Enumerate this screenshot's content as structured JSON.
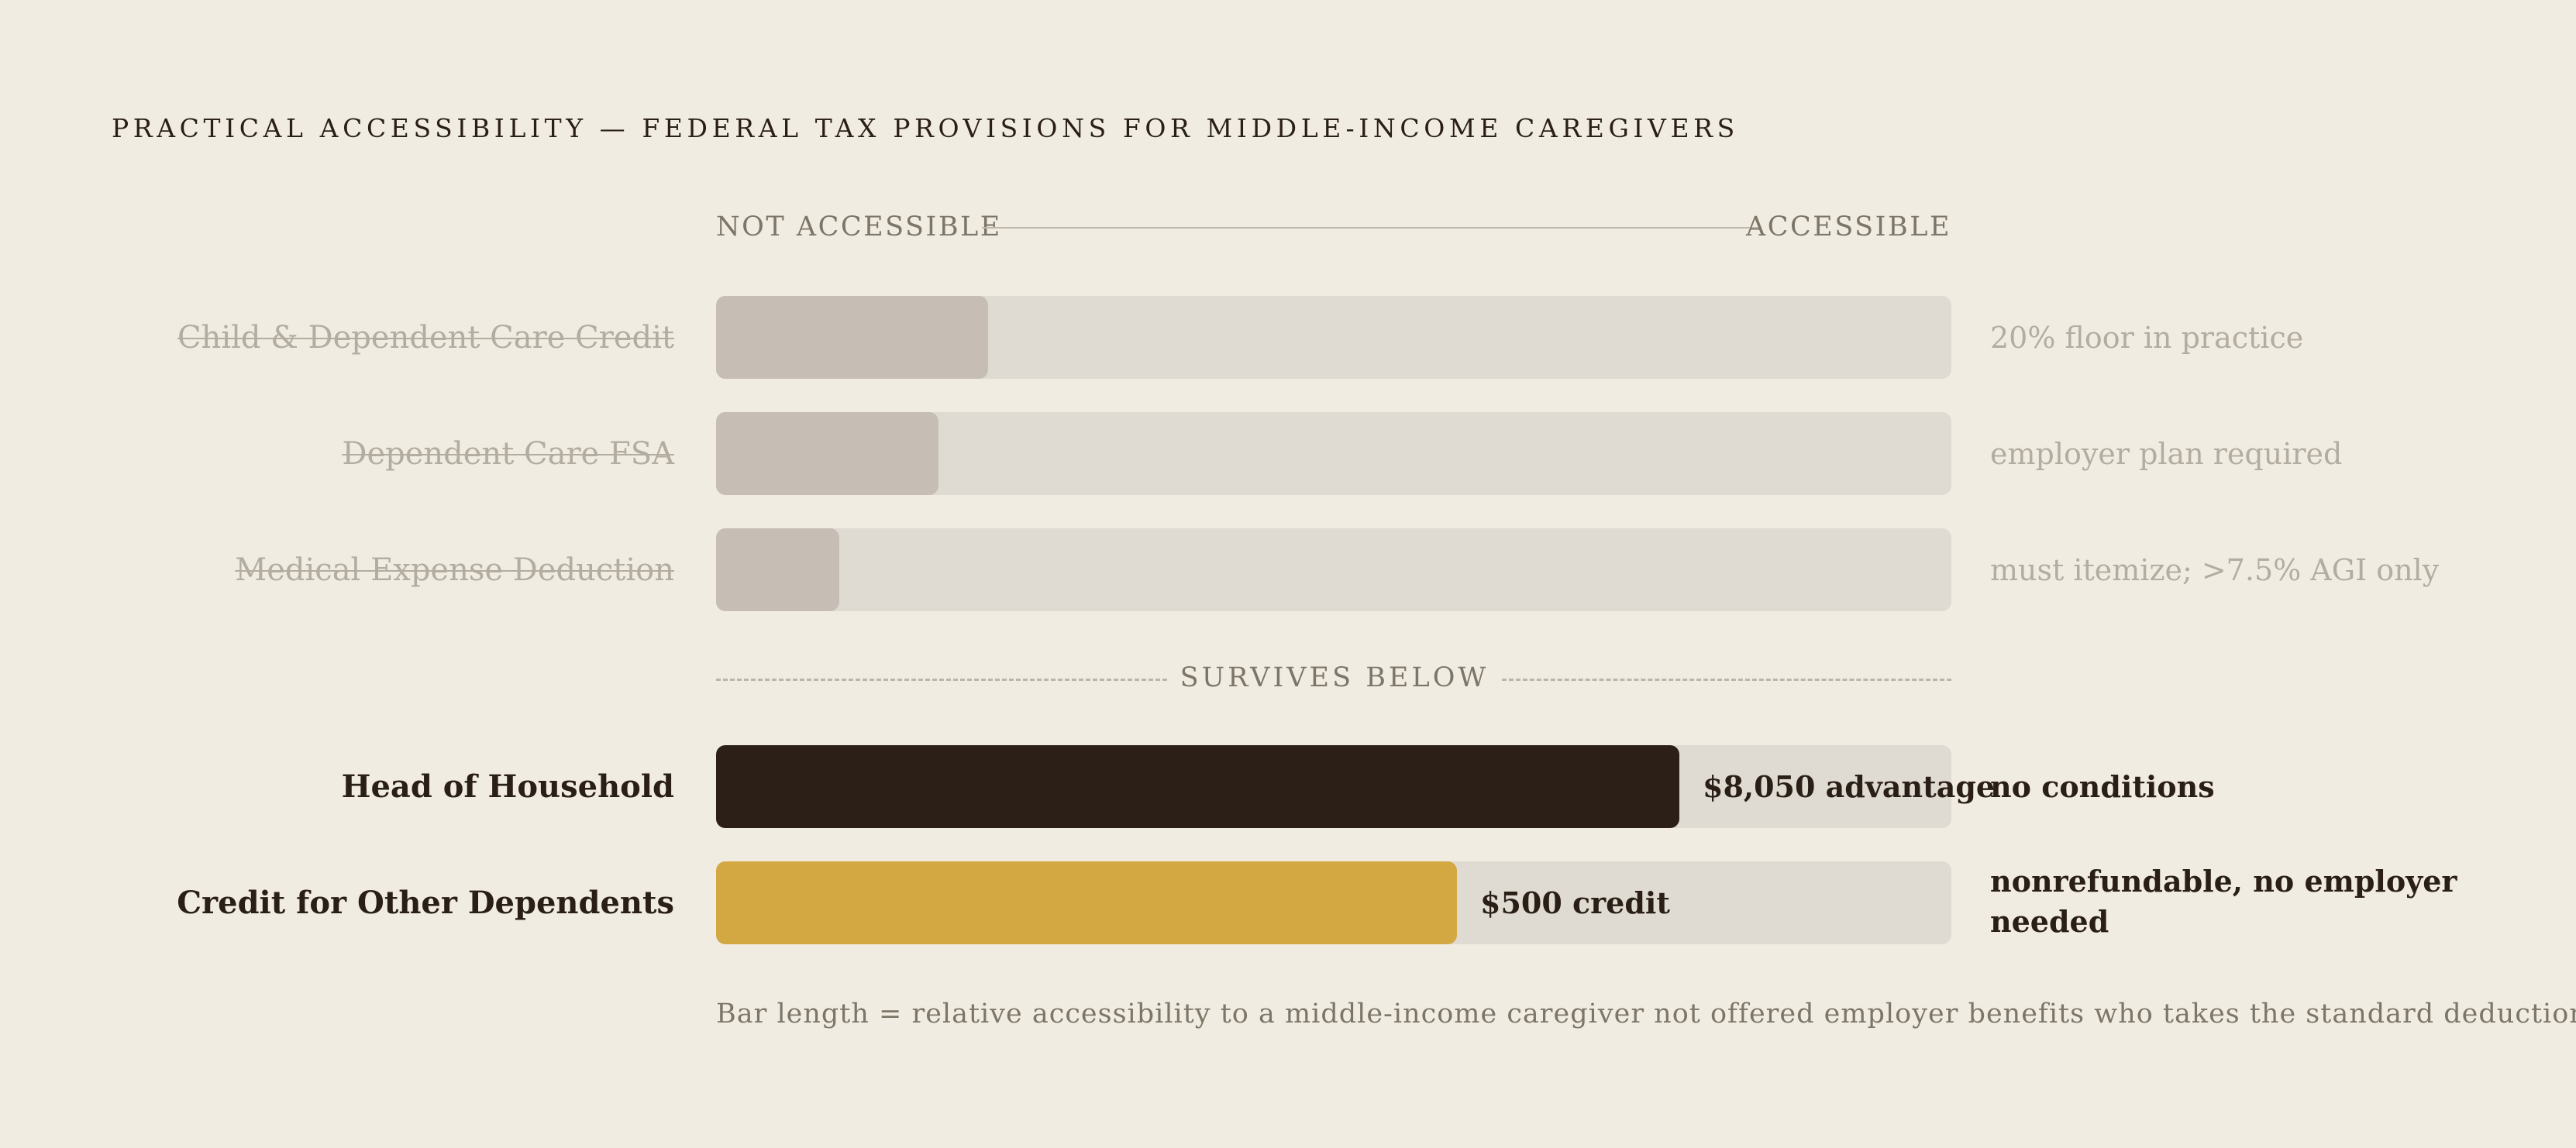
{
  "title": "PRACTICAL ACCESSIBILITY — FEDERAL TAX PROVISIONS FOR MIDDLE-INCOME CAREGIVERS",
  "chart_data": {
    "type": "bar",
    "orientation": "horizontal",
    "title": "PRACTICAL ACCESSIBILITY — FEDERAL TAX PROVISIONS FOR MIDDLE-INCOME CAREGIVERS",
    "xlim": [
      0,
      1
    ],
    "scale_labels": {
      "left": "NOT ACCESSIBLE",
      "right": "ACCESSIBLE"
    },
    "divider_label": "SURVIVES BELOW",
    "footnote": "Bar length = relative accessibility to a middle-income caregiver not offered employer benefits who takes the standard deduction.",
    "colors": {
      "excluded": "#c6beb4",
      "track": "#e0dbd2",
      "dark": "#2b1f17",
      "gold": "#d3a843"
    },
    "bars": [
      {
        "label": "Child & Dependent Care Credit",
        "value": 0.22,
        "note": "20% floor in practice",
        "group": "excluded",
        "bar_label": ""
      },
      {
        "label": "Dependent Care FSA",
        "value": 0.18,
        "note": "employer plan required",
        "group": "excluded",
        "bar_label": ""
      },
      {
        "label": "Medical Expense Deduction",
        "value": 0.1,
        "note": "must itemize; >7.5% AGI only",
        "group": "excluded",
        "bar_label": ""
      },
      {
        "label": "Head of Household",
        "value": 0.78,
        "note": "no conditions",
        "group": "survives",
        "bar_label": "$8,050 advantage",
        "color": "#2b1f17"
      },
      {
        "label": "Credit for Other Dependents",
        "value": 0.6,
        "note": "nonrefundable, no employer needed",
        "group": "survives",
        "bar_label": "$500 credit",
        "color": "#d3a843"
      }
    ]
  }
}
